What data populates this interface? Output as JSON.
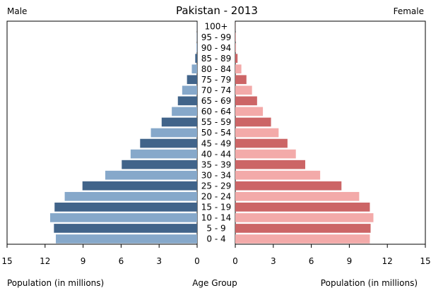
{
  "chart_data": {
    "type": "bar",
    "title": "Pakistan - 2013",
    "left_label": "Male",
    "right_label": "Female",
    "left_axis_title": "Population (in millions)",
    "center_axis_title": "Age Group",
    "right_axis_title": "Population (in millions)",
    "xlim": [
      0,
      15
    ],
    "ticks": [
      "15",
      "12",
      "9",
      "6",
      "3",
      "0"
    ],
    "right_ticks": [
      "0",
      "3",
      "6",
      "9",
      "12",
      "15"
    ],
    "tick_values_left": [
      15,
      12,
      9,
      6,
      3,
      0
    ],
    "tick_values_right": [
      0,
      3,
      6,
      9,
      12,
      15
    ],
    "categories": [
      "100+",
      "95 - 99",
      "90 - 94",
      "85 - 89",
      "80 - 84",
      "75 - 79",
      "70 - 74",
      "65 - 69",
      "60 - 64",
      "55 - 59",
      "50 - 54",
      "45 - 49",
      "40 - 44",
      "35 - 39",
      "30 - 34",
      "25 - 29",
      "20 - 24",
      "15 - 19",
      "10 - 14",
      "5 - 9",
      "0 - 4"
    ],
    "series": [
      {
        "name": "Male",
        "side": "left",
        "colors": [
          "#41648a",
          "#86a8ca"
        ],
        "values": [
          0.01,
          0.02,
          0.05,
          0.15,
          0.42,
          0.8,
          1.18,
          1.52,
          2.0,
          2.8,
          3.65,
          4.5,
          5.25,
          5.95,
          7.25,
          9.05,
          10.45,
          11.25,
          11.6,
          11.3,
          11.15
        ]
      },
      {
        "name": "Female",
        "side": "right",
        "colors": [
          "#cc6566",
          "#f3aaa9"
        ],
        "values": [
          0.01,
          0.03,
          0.06,
          0.18,
          0.48,
          0.88,
          1.32,
          1.72,
          2.18,
          2.82,
          3.42,
          4.12,
          4.78,
          5.52,
          6.7,
          8.38,
          9.78,
          10.62,
          10.9,
          10.68,
          10.62
        ]
      }
    ]
  }
}
